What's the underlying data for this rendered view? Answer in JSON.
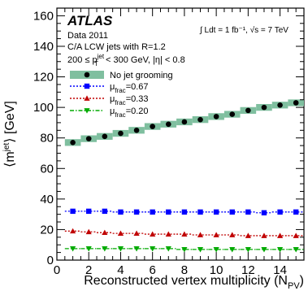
{
  "chart_data": {
    "type": "scatter",
    "xlabel": "Reconstructed vertex multiplicity (N",
    "xlabel_sub": "PV",
    "xlabel_close": ")",
    "ylabel": "⟨m",
    "ylabel_sup": "jet",
    "ylabel_close": "⟩ [GeV]",
    "xlim": [
      0,
      15.5
    ],
    "ylim": [
      0,
      165
    ],
    "x_ticks": [
      0,
      2,
      4,
      6,
      8,
      10,
      12,
      14
    ],
    "y_ticks": [
      0,
      20,
      40,
      60,
      80,
      100,
      120,
      140,
      160
    ],
    "annotations": {
      "atlas": "ATLAS",
      "data": "Data 2011",
      "jets": "C/A LCW jets with R=1.2",
      "cut_pre": "200 ≤ p",
      "cut_sup": "jet",
      "cut_sub": "T",
      "cut_post": " < 300 GeV, |η| < 0.8",
      "lumi": "∫ Ldt = 1 fb⁻¹, √s = 7 TeV"
    },
    "legend": [
      {
        "label": "No jet grooming",
        "sub": "",
        "post": ""
      },
      {
        "label": "μ",
        "sub": "frac",
        "post": "=0.67"
      },
      {
        "label": "μ",
        "sub": "frac",
        "post": "=0.33"
      },
      {
        "label": "μ",
        "sub": "frac",
        "post": "=0.20"
      }
    ],
    "x": [
      1,
      2,
      3,
      4,
      5,
      6,
      7,
      8,
      9,
      10,
      11,
      12,
      13,
      14,
      15
    ],
    "series": [
      {
        "values": [
          77,
          79.5,
          81,
          83,
          85,
          87.5,
          89,
          90.5,
          92,
          94,
          95.5,
          98,
          100,
          101.5,
          103
        ],
        "color": "#000000",
        "marker": "circle",
        "line": "none",
        "band": "#7fbf9f"
      },
      {
        "values": [
          32,
          32,
          32,
          31.5,
          31.5,
          31.5,
          31.5,
          31.5,
          31.5,
          31.5,
          31.5,
          31.5,
          31,
          31.5,
          31.5
        ],
        "color": "#0000ff",
        "marker": "square",
        "line": "dotted"
      },
      {
        "values": [
          19,
          18.5,
          18,
          17.5,
          17.5,
          17,
          17,
          17,
          16.5,
          16.5,
          16.5,
          16,
          16,
          16,
          16
        ],
        "color": "#c00000",
        "marker": "triangle-up",
        "line": "dotted"
      },
      {
        "values": [
          7.5,
          7.5,
          7.5,
          7.5,
          7.5,
          7.5,
          7.5,
          7,
          7,
          7,
          7,
          7,
          7,
          7,
          7
        ],
        "color": "#00aa00",
        "marker": "triangle-down",
        "line": "dashdot"
      }
    ]
  }
}
